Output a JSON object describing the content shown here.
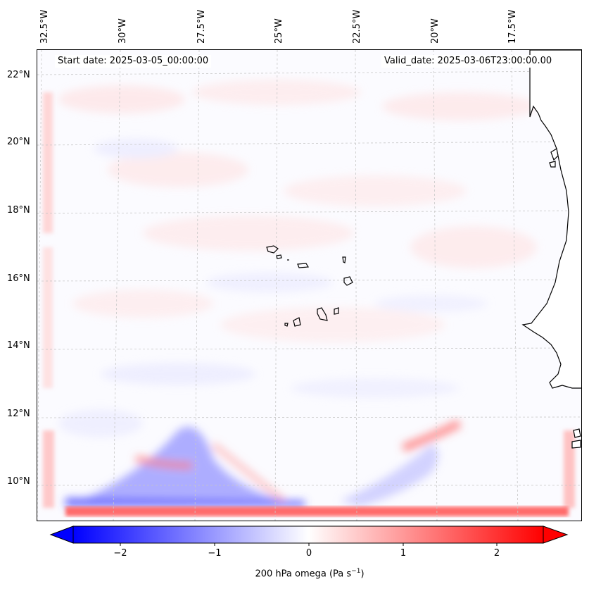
{
  "map": {
    "start_date": "Start date: 2025-03-05_00:00:00",
    "valid_date": "Valid_date: 2025-03-06T23:00:00.00",
    "longitude_labels": [
      "32.5°W",
      "30°W",
      "27.5°W",
      "25°W",
      "22.5°W",
      "20°W",
      "17.5°W"
    ],
    "latitude_labels": [
      "22°N",
      "20°N",
      "18°N",
      "16°N",
      "14°N",
      "12°N",
      "10°N"
    ],
    "field": "200 hPa omega",
    "colors": {
      "negative": "#0000ff",
      "zero": "#ffffff",
      "positive": "#ff0000",
      "coast": "#000000",
      "grid": "#c8c8c8"
    }
  },
  "colorbar": {
    "ticks": [
      "−2",
      "−1",
      "0",
      "1",
      "2"
    ],
    "label_main": "200 hPa omega (Pa s",
    "label_exp": "−1",
    "label_close": ")"
  }
}
